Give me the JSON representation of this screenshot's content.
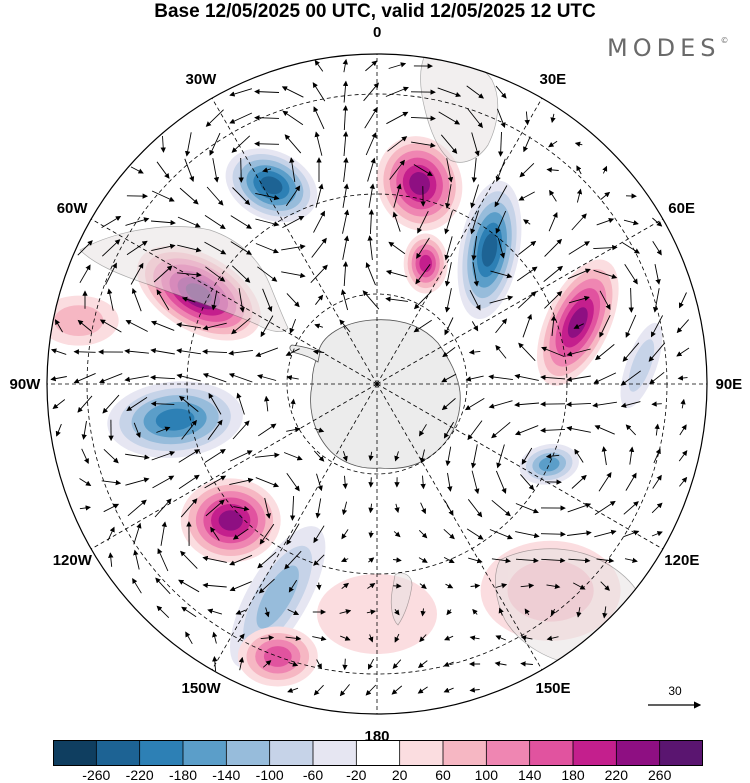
{
  "title": "Base 12/05/2025 00 UTC, valid 12/05/2025 12 UTC",
  "brand": "MODES",
  "brand_mark": "©",
  "longitude_labels": [
    {
      "id": "lon-0",
      "text": "0",
      "angle": 0
    },
    {
      "id": "lon-30e",
      "text": "30E",
      "angle": 30
    },
    {
      "id": "lon-60e",
      "text": "60E",
      "angle": 60
    },
    {
      "id": "lon-90e",
      "text": "90E",
      "angle": 90
    },
    {
      "id": "lon-120e",
      "text": "120E",
      "angle": 120
    },
    {
      "id": "lon-150e",
      "text": "150E",
      "angle": 150
    },
    {
      "id": "lon-180",
      "text": "180",
      "angle": 180
    },
    {
      "id": "lon-150w",
      "text": "150W",
      "angle": 210
    },
    {
      "id": "lon-120w",
      "text": "120W",
      "angle": 240
    },
    {
      "id": "lon-90w",
      "text": "90W",
      "angle": 270
    },
    {
      "id": "lon-60w",
      "text": "60W",
      "angle": 300
    },
    {
      "id": "lon-30w",
      "text": "30W",
      "angle": 330
    }
  ],
  "reference_vector": {
    "label": "30"
  },
  "colorbar": {
    "colors": [
      "#0f3e60",
      "#1d6394",
      "#2d80b5",
      "#5b9ec9",
      "#97bcdb",
      "#c6d3e8",
      "#e6e6f2",
      "#ffffff",
      "#fbdde0",
      "#f6b7c3",
      "#ef86b2",
      "#e1539f",
      "#c41f8d",
      "#8e0f82",
      "#5a1570"
    ],
    "tick_labels": [
      "-260",
      "-220",
      "-180",
      "-140",
      "-100",
      "-60",
      "-20",
      "20",
      "60",
      "100",
      "140",
      "180",
      "220",
      "260"
    ]
  },
  "anomalies": [
    {
      "lon": -28,
      "r": 225,
      "value": -260,
      "ex": 48,
      "ey": 34,
      "rot": 25
    },
    {
      "lon": 12,
      "r": 205,
      "value": 240,
      "ex": 42,
      "ey": 48,
      "rot": -20
    },
    {
      "lon": 22,
      "r": 130,
      "value": 200,
      "ex": 22,
      "ey": 30,
      "rot": 0
    },
    {
      "lon": 40,
      "r": 175,
      "value": -250,
      "ex": 30,
      "ey": 70,
      "rot": 10
    },
    {
      "lon": 73,
      "r": 210,
      "value": 240,
      "ex": 32,
      "ey": 68,
      "rot": 25
    },
    {
      "lon": 86,
      "r": 265,
      "value": -100,
      "ex": 15,
      "ey": 45,
      "rot": 20
    },
    {
      "lon": 115,
      "r": 190,
      "value": -180,
      "ex": 30,
      "ey": 20,
      "rot": -10
    },
    {
      "lon": 140,
      "r": 270,
      "value": 60,
      "ex": 70,
      "ey": 50,
      "rot": 0
    },
    {
      "lon": 180,
      "r": 230,
      "value": 40,
      "ex": 60,
      "ey": 40,
      "rot": 0
    },
    {
      "lon": -155,
      "r": 235,
      "value": -130,
      "ex": 30,
      "ey": 80,
      "rot": 30
    },
    {
      "lon": -133,
      "r": 200,
      "value": 240,
      "ex": 50,
      "ey": 42,
      "rot": 0
    },
    {
      "lon": -100,
      "r": 205,
      "value": -200,
      "ex": 68,
      "ey": 38,
      "rot": -5
    },
    {
      "lon": -63,
      "r": 200,
      "value": 260,
      "ex": 68,
      "ey": 38,
      "rot": 30
    },
    {
      "lon": -160,
      "r": 290,
      "value": 140,
      "ex": 40,
      "ey": 30,
      "rot": 0
    },
    {
      "lon": -78,
      "r": 305,
      "value": 60,
      "ex": 40,
      "ey": 25,
      "rot": 0
    }
  ]
}
